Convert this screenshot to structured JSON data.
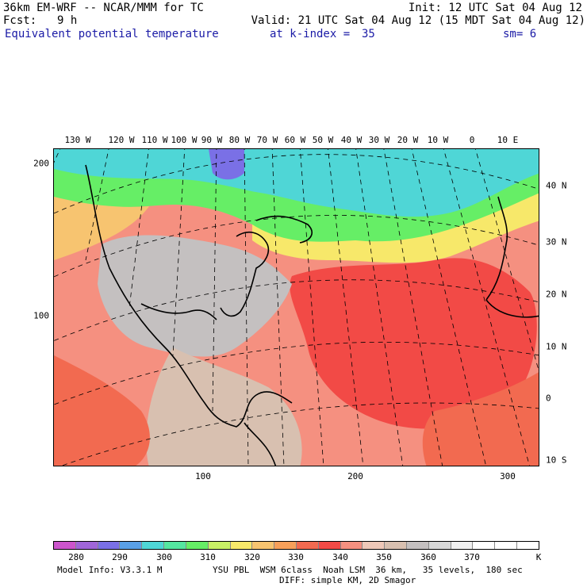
{
  "header": {
    "model_title": "36km EM-WRF -- NCAR/MMM for TC",
    "init": "Init: 12 UTC Sat 04 Aug 12",
    "fcst_label": "Fcst:",
    "fcst_value": "9 h",
    "valid": "Valid: 21 UTC Sat 04 Aug 12 (15 MDT Sat 04 Aug 12)",
    "field_name": "Equivalent potential temperature",
    "level": "at k-index =",
    "level_value": "35",
    "smoothing": "sm= 6"
  },
  "map": {
    "top_lon_labels": [
      "130 W",
      "120 W",
      "110 W",
      "100 W",
      "90 W",
      "80 W",
      "70 W",
      "60 W",
      "50 W",
      "40 W",
      "30 W",
      "20 W",
      "10 W",
      "0",
      "10 E"
    ],
    "right_lat_labels": [
      "40 N",
      "30 N",
      "20 N",
      "10 N",
      "0",
      "10 S"
    ],
    "left_grid_labels": [
      "200",
      "100"
    ],
    "bottom_grid_labels": [
      "100",
      "200",
      "300"
    ]
  },
  "colorbar": {
    "colors": [
      "#cc55cc",
      "#a066d9",
      "#7a70e6",
      "#5aa0e6",
      "#4fd6d6",
      "#55e6a0",
      "#66ee66",
      "#c8f066",
      "#f7e86a",
      "#f7c470",
      "#f7a05a",
      "#f26a50",
      "#f24a46",
      "#f59080",
      "#eec8b8",
      "#d8c0b0",
      "#c4c0c0",
      "#d8d8d8",
      "#f0f0f0",
      "#ffffff",
      "#ffffff",
      "#ffffff"
    ],
    "labels": [
      "280",
      "290",
      "300",
      "310",
      "320",
      "330",
      "340",
      "350",
      "360",
      "370"
    ],
    "unit": "K"
  },
  "footer": {
    "model_info": "Model Info: V3.3.1 M",
    "physics": "YSU PBL  WSM 6class  Noah LSM  36 km,   35 levels,  180 sec",
    "diffusion": "DIFF: simple KM, 2D Smagor"
  }
}
